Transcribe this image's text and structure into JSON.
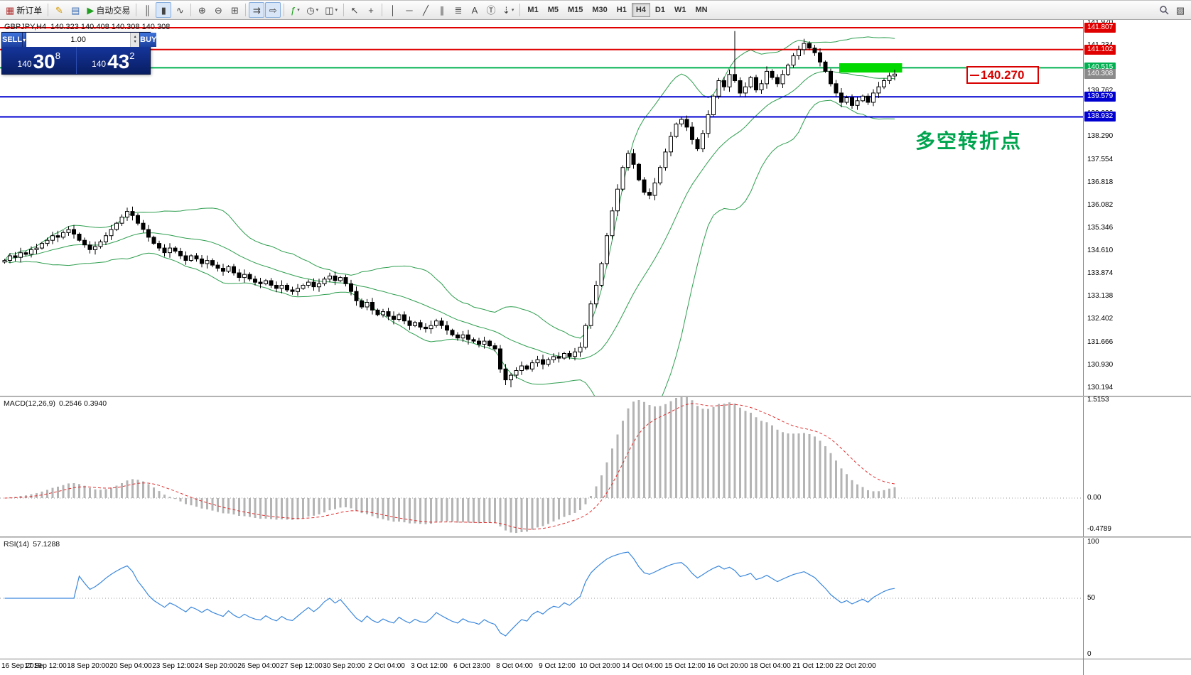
{
  "toolbar": {
    "dropdown_glyph": "▾",
    "items": [
      {
        "name": "new-order-button",
        "glyph": "▦",
        "glyph_color": "#b03030",
        "label": "新订单"
      },
      {
        "sep": true
      },
      {
        "name": "metaeditor-button",
        "glyph": "✎",
        "glyph_color": "#d79b00"
      },
      {
        "name": "market-watch-button",
        "glyph": "▤",
        "glyph_color": "#3c6eb4"
      },
      {
        "name": "autotrading-button",
        "glyph": "▶",
        "glyph_color": "#1fa01f",
        "label": "自动交易"
      },
      {
        "sep": true
      },
      {
        "name": "bar-chart-button",
        "glyph": "║"
      },
      {
        "name": "candlestick-chart-button",
        "glyph": "▮",
        "active": true
      },
      {
        "name": "line-chart-button",
        "glyph": "∿"
      },
      {
        "sep": true
      },
      {
        "name": "zoom-in-button",
        "glyph": "⊕"
      },
      {
        "name": "zoom-out-button",
        "glyph": "⊖"
      },
      {
        "name": "tile-windows-button",
        "glyph": "⊞"
      },
      {
        "sep": true
      },
      {
        "name": "auto-scroll-button",
        "glyph": "⇉",
        "active": true
      },
      {
        "name": "chart-shift-button",
        "glyph": "⇨",
        "active": true
      },
      {
        "sep": true
      },
      {
        "name": "indicators-button",
        "glyph": "ƒ",
        "glyph_color": "#1fa01f",
        "dropdown": true
      },
      {
        "name": "periods-button",
        "glyph": "◷",
        "dropdown": true
      },
      {
        "name": "templates-button",
        "glyph": "◫",
        "dropdown": true
      },
      {
        "sep": true
      },
      {
        "name": "cursor-button",
        "glyph": "↖"
      },
      {
        "name": "crosshair-button",
        "glyph": "+"
      },
      {
        "sep": true
      },
      {
        "name": "vertical-line-button",
        "glyph": "│"
      },
      {
        "name": "horizontal-line-button",
        "glyph": "─"
      },
      {
        "name": "trendline-button",
        "glyph": "╱"
      },
      {
        "name": "channel-button",
        "glyph": "∥"
      },
      {
        "name": "fibonacci-button",
        "glyph": "≣"
      },
      {
        "name": "text-button",
        "glyph": "A"
      },
      {
        "name": "text-label-button",
        "glyph": "Ⓣ"
      },
      {
        "name": "arrows-button",
        "glyph": "⇣",
        "dropdown": true
      },
      {
        "sep": true
      }
    ],
    "timeframes": [
      "M1",
      "M5",
      "M15",
      "M30",
      "H1",
      "H4",
      "D1",
      "W1",
      "MN"
    ],
    "active_timeframe": "H4",
    "right_items": [
      {
        "name": "search-button",
        "glyph": "svg-magnifier"
      },
      {
        "name": "new-chart-window-button",
        "glyph": "▨"
      }
    ]
  },
  "order_panel": {
    "sell_label": "SELL",
    "buy_label": "BUY",
    "volume": "1.00",
    "spinner_up": "▴",
    "spinner_down": "▾",
    "sell_price": {
      "prefix": "140",
      "big": "30",
      "sup": "8"
    },
    "buy_price": {
      "prefix": "140",
      "big": "43",
      "sup": "2"
    }
  },
  "chart": {
    "symbol_period": "GBPJPY,H4",
    "ohlc": "140.323 140.408 140.308 140.308",
    "annotation": "多空转折点",
    "callout_text": "140.270",
    "levels": [
      {
        "price": 141.807,
        "color": "#e00000"
      },
      {
        "price": 141.102,
        "color": "#e00000"
      },
      {
        "price": 140.515,
        "color": "#00b050"
      },
      {
        "price": 139.579,
        "color": "#0000d0"
      },
      {
        "price": 138.932,
        "color": "#0000d0"
      }
    ],
    "highlight": {
      "bar_start": 157,
      "bar_end": 168,
      "price_low": 140.36,
      "price_high": 140.66,
      "color": "#00d800"
    },
    "scale": {
      "plain": [
        "141.970",
        "141.234",
        "140.498",
        "139.762",
        "139.026",
        "138.290",
        "137.554",
        "136.818",
        "136.082",
        "135.346",
        "134.610",
        "133.874",
        "133.138",
        "132.402",
        "131.666",
        "130.930",
        "130.194"
      ],
      "boxed": [
        {
          "text": "141.807",
          "color": "#e00000"
        },
        {
          "text": "141.102",
          "color": "#e00000"
        },
        {
          "text": "140.515",
          "color": "#00b050"
        },
        {
          "text": "140.308",
          "color": "#8a8a8a"
        },
        {
          "text": "139.579",
          "color": "#0000d0"
        },
        {
          "text": "138.932",
          "color": "#0000d0"
        }
      ]
    }
  },
  "chart_data": {
    "type": "candlestick",
    "symbol": "GBPJPY",
    "timeframe": "H4",
    "y_axis": {
      "min": 130.19,
      "max": 141.99
    },
    "x_labels": [
      "16 Sep 2019",
      "17 Sep 12:00",
      "18 Sep 20:00",
      "20 Sep 04:00",
      "23 Sep 12:00",
      "24 Sep 20:00",
      "26 Sep 04:00",
      "27 Sep 12:00",
      "30 Sep 20:00",
      "2 Oct 04:00",
      "3 Oct 12:00",
      "6 Oct 23:00",
      "8 Oct 04:00",
      "9 Oct 12:00",
      "10 Oct 20:00",
      "14 Oct 04:00",
      "15 Oct 12:00",
      "16 Oct 20:00",
      "18 Oct 04:00",
      "21 Oct 12:00",
      "22 Oct 20:00"
    ],
    "closes": [
      134.3,
      134.45,
      134.4,
      134.55,
      134.5,
      134.65,
      134.7,
      134.85,
      134.95,
      135.1,
      135.05,
      135.2,
      135.3,
      135.15,
      134.95,
      134.8,
      134.65,
      134.75,
      134.9,
      135.1,
      135.3,
      135.5,
      135.7,
      135.88,
      135.75,
      135.5,
      135.3,
      135.05,
      134.85,
      134.7,
      134.55,
      134.7,
      134.6,
      134.45,
      134.3,
      134.45,
      134.35,
      134.2,
      134.3,
      134.15,
      134.05,
      133.95,
      134.1,
      133.9,
      133.75,
      133.85,
      133.7,
      133.6,
      133.55,
      133.65,
      133.5,
      133.4,
      133.5,
      133.35,
      133.3,
      133.4,
      133.5,
      133.6,
      133.45,
      133.55,
      133.7,
      133.8,
      133.65,
      133.75,
      133.55,
      133.3,
      133.0,
      132.8,
      132.95,
      132.7,
      132.55,
      132.65,
      132.5,
      132.4,
      132.55,
      132.35,
      132.2,
      132.3,
      132.15,
      132.1,
      132.2,
      132.35,
      132.2,
      132.05,
      131.9,
      131.8,
      131.9,
      131.75,
      131.7,
      131.6,
      131.7,
      131.55,
      131.45,
      130.8,
      130.45,
      130.6,
      130.75,
      130.9,
      130.8,
      131.0,
      131.1,
      130.95,
      131.1,
      131.2,
      131.15,
      131.3,
      131.2,
      131.35,
      131.5,
      132.2,
      132.9,
      133.5,
      134.2,
      135.1,
      135.9,
      136.6,
      137.3,
      137.75,
      137.4,
      136.9,
      136.5,
      136.4,
      136.8,
      137.3,
      137.8,
      138.3,
      138.7,
      138.85,
      138.6,
      138.2,
      137.9,
      138.4,
      139.0,
      139.6,
      140.1,
      139.9,
      140.3,
      140.1,
      139.7,
      139.9,
      140.2,
      139.8,
      140.0,
      140.4,
      140.2,
      140.0,
      140.3,
      140.6,
      140.9,
      141.1,
      141.3,
      141.15,
      141.0,
      140.7,
      140.4,
      140.0,
      139.7,
      139.4,
      139.55,
      139.3,
      139.45,
      139.6,
      139.4,
      139.7,
      139.9,
      140.1,
      140.25,
      140.31
    ],
    "wick_overrides": {
      "highs": {
        "137": 141.7,
        "150": 141.45
      },
      "lows": {
        "94": 130.28,
        "95": 130.21
      }
    },
    "indicators": {
      "bollinger": {
        "period": 20,
        "deviation": 2,
        "color": "#2e9e4f"
      },
      "macd": {
        "label": "MACD(12,26,9)",
        "value": "0.2546 0.3940",
        "scale_ticks": [
          "1.5153",
          "0.00",
          "-0.4789"
        ],
        "histogram_color": "#b4b4b4",
        "signal_color": "#e03030"
      },
      "rsi": {
        "label": "RSI(14)",
        "value": "57.1288",
        "scale_ticks": [
          "100",
          "50",
          "0"
        ],
        "line_color": "#3a87dd"
      }
    }
  }
}
